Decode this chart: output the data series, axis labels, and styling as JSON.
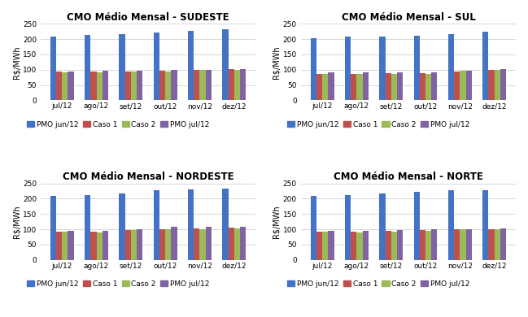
{
  "titles": [
    "CMO Médio Mensal - SUDESTE",
    "CMO Médio Mensal - SUL",
    "CMO Médio Mensal - NORDESTE",
    "CMO Médio Mensal - NORTE"
  ],
  "categories": [
    "jul/12",
    "ago/12",
    "set/12",
    "out/12",
    "nov/12",
    "dez/12"
  ],
  "series": {
    "SUDESTE": {
      "PMO jun/12": [
        208,
        213,
        216,
        221,
        227,
        231
      ],
      "Caso 1": [
        93,
        93,
        95,
        97,
        100,
        101
      ],
      "Caso 2": [
        92,
        91,
        93,
        95,
        99,
        100
      ],
      "PMO jul/12": [
        94,
        96,
        97,
        99,
        100,
        103
      ]
    },
    "SUL": {
      "PMO jun/12": [
        203,
        207,
        207,
        211,
        217,
        225
      ],
      "Caso 1": [
        87,
        87,
        88,
        89,
        94,
        100
      ],
      "Caso 2": [
        86,
        86,
        87,
        87,
        96,
        99
      ],
      "PMO jul/12": [
        90,
        90,
        91,
        92,
        97,
        101
      ]
    },
    "NORDESTE": {
      "PMO jun/12": [
        208,
        213,
        216,
        227,
        230,
        232
      ],
      "Caso 1": [
        93,
        92,
        97,
        101,
        104,
        105
      ],
      "Caso 2": [
        92,
        91,
        97,
        99,
        101,
        104
      ],
      "PMO jul/12": [
        95,
        96,
        100,
        107,
        108,
        107
      ]
    },
    "NORTE": {
      "PMO jun/12": [
        208,
        213,
        216,
        222,
        227,
        228
      ],
      "Caso 1": [
        93,
        93,
        95,
        97,
        100,
        101
      ],
      "Caso 2": [
        92,
        91,
        93,
        95,
        99,
        100
      ],
      "PMO jul/12": [
        94,
        96,
        97,
        99,
        100,
        102
      ]
    }
  },
  "colors": {
    "PMO jun/12": "#4472C4",
    "Caso 1": "#C0504D",
    "Caso 2": "#9BBB59",
    "PMO jul/12": "#8064A2"
  },
  "legend_labels": [
    "PMO jun/12",
    "Caso 1",
    "Caso 2",
    "PMO jul/12"
  ],
  "ylabel": "R$/MWh",
  "ylim": [
    0,
    250
  ],
  "yticks": [
    0,
    50,
    100,
    150,
    200,
    250
  ],
  "background_color": "#FFFFFF",
  "grid_color": "#C8C8C8",
  "title_fontsize": 8.5,
  "axis_fontsize": 7,
  "tick_fontsize": 6.5,
  "legend_fontsize": 6.5,
  "bar_width": 0.17
}
